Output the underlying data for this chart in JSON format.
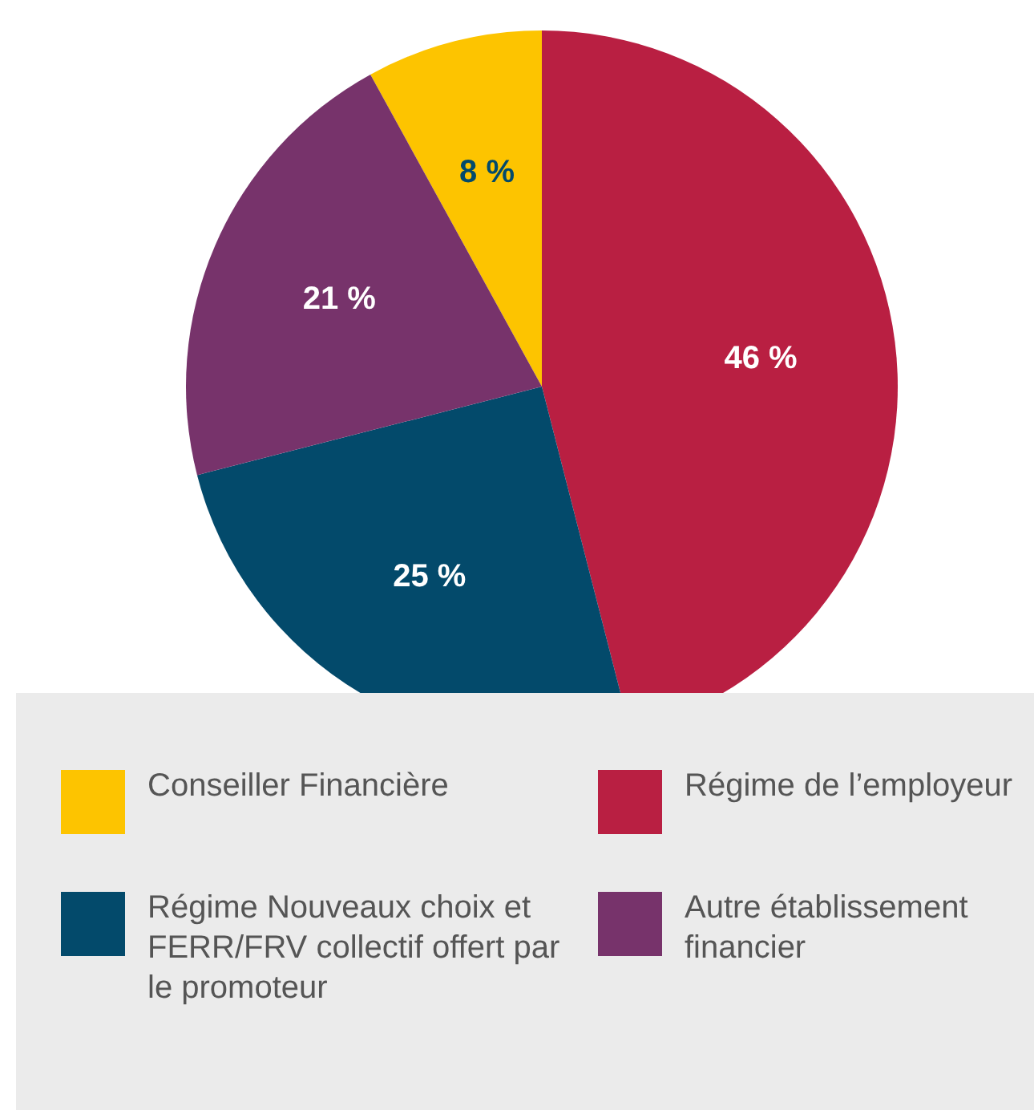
{
  "chart_data": {
    "type": "pie",
    "categories": [
      "Conseiller Financière",
      "Régime de l’employeur",
      "Régime Nouveaux choix et FERR/FRV collectif offert par le promoteur",
      "Autre établissement financier"
    ],
    "values": [
      8,
      46,
      25,
      21
    ],
    "colors": [
      "#fdc400",
      "#b91f42",
      "#034a6b",
      "#77336b"
    ],
    "value_labels": [
      "8 %",
      "46 %",
      "25 %",
      "21 %"
    ],
    "legend": "bottom"
  }
}
